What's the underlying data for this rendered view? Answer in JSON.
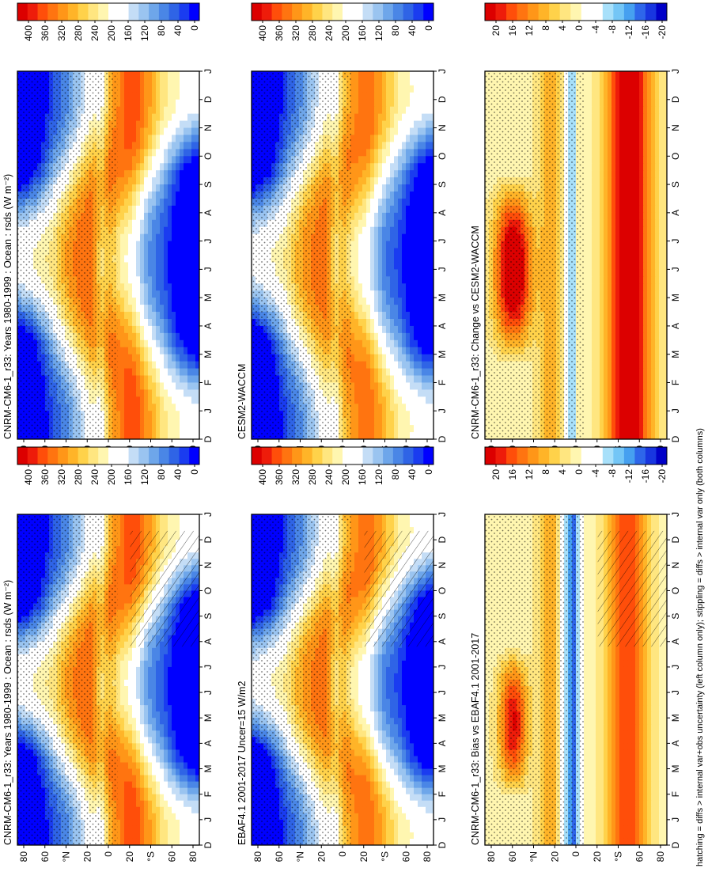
{
  "footnote": "hatching = diffs > internal var+obs uncertainty (left column only); stippling = diffs > internal var only (both columns)",
  "months": [
    "D",
    "J",
    "F",
    "M",
    "A",
    "M",
    "J",
    "J",
    "A",
    "S",
    "O",
    "N",
    "D",
    "J"
  ],
  "lat_ticks": [
    "80",
    "60",
    "°N",
    "20",
    "0",
    "20",
    "°S",
    "60",
    "80"
  ],
  "colors": {
    "abs": [
      "#0000ff",
      "#1a3cf0",
      "#2f64e6",
      "#4a86e6",
      "#6ea6ea",
      "#9ac4f0",
      "#c4ddf6",
      "#ffffff",
      "#ffffff",
      "#fff6b0",
      "#ffe680",
      "#ffd24a",
      "#ffb428",
      "#ff9618",
      "#ff7410",
      "#ff4e0a",
      "#ee1c0a",
      "#dc0000"
    ],
    "diff": [
      "#0000c8",
      "#1836e0",
      "#2e66ea",
      "#46a0f0",
      "#74c6f6",
      "#a8e0fa",
      "#ffffff",
      "#ffffff",
      "#fff6b0",
      "#ffe680",
      "#ffd24a",
      "#ffb428",
      "#ff9618",
      "#ff7410",
      "#ff4e0a",
      "#ee1c0a",
      "#dc0000"
    ]
  },
  "chart_data": [
    {
      "type": "heatmap",
      "title": "CNRM-CM6-1_r33: Years 1980-1999 : Ocean : rsds (W m⁻²)",
      "variable": "rsds",
      "units": "W m⁻²",
      "x_ticks": [
        "D",
        "J",
        "F",
        "M",
        "A",
        "M",
        "J",
        "J",
        "A",
        "S",
        "O",
        "N",
        "D",
        "J"
      ],
      "y_ticks": [
        "80",
        "60",
        "°N",
        "20",
        "0",
        "20",
        "°S",
        "60",
        "80"
      ],
      "colorbar_ticks": [
        "400",
        "360",
        "320",
        "280",
        "240",
        "200",
        "160",
        "120",
        "80",
        "40",
        "0"
      ],
      "range": [
        0,
        420
      ],
      "hatching": true,
      "stippling": true
    },
    {
      "type": "heatmap",
      "title": "EBAF4.1 2001-2017 Uncer=15 W/m2",
      "x_ticks": [
        "D",
        "J",
        "F",
        "M",
        "A",
        "M",
        "J",
        "J",
        "A",
        "S",
        "O",
        "N",
        "D",
        "J"
      ],
      "y_ticks": [
        "80",
        "60",
        "°N",
        "20",
        "0",
        "20",
        "°S",
        "60",
        "80"
      ],
      "colorbar_ticks": [
        "400",
        "360",
        "320",
        "280",
        "240",
        "200",
        "160",
        "120",
        "80",
        "40",
        "0"
      ],
      "range": [
        0,
        420
      ],
      "hatching": true,
      "stippling": true
    },
    {
      "type": "heatmap",
      "title": "CNRM-CM6-1_r33: Bias vs EBAF4.1 2001-2017",
      "x_ticks": [
        "D",
        "J",
        "F",
        "M",
        "A",
        "M",
        "J",
        "J",
        "A",
        "S",
        "O",
        "N",
        "D",
        "J"
      ],
      "y_ticks": [
        "80",
        "60",
        "°N",
        "20",
        "0",
        "20",
        "°S",
        "60",
        "80"
      ],
      "colorbar_ticks": [
        "20",
        "16",
        "12",
        "8",
        "4",
        "0",
        "-4",
        "-8",
        "-12",
        "-16",
        "-20"
      ],
      "range": [
        -22,
        22
      ],
      "hatching": true,
      "stippling": true
    },
    {
      "type": "heatmap",
      "title": "CNRM-CM6-1_r33: Years 1980-1999 : Ocean : rsds (W m⁻²)",
      "variable": "rsds",
      "units": "W m⁻²",
      "x_ticks": [
        "D",
        "J",
        "F",
        "M",
        "A",
        "M",
        "J",
        "J",
        "A",
        "S",
        "O",
        "N",
        "D",
        "J"
      ],
      "y_ticks": [
        "80",
        "60",
        "°N",
        "20",
        "0",
        "20",
        "°S",
        "60",
        "80"
      ],
      "colorbar_ticks": [
        "400",
        "360",
        "320",
        "280",
        "240",
        "200",
        "160",
        "120",
        "80",
        "40",
        "0"
      ],
      "range": [
        0,
        420
      ],
      "hatching": false,
      "stippling": true
    },
    {
      "type": "heatmap",
      "title": "CESM2-WACCM",
      "x_ticks": [
        "D",
        "J",
        "F",
        "M",
        "A",
        "M",
        "J",
        "J",
        "A",
        "S",
        "O",
        "N",
        "D",
        "J"
      ],
      "y_ticks": [
        "80",
        "60",
        "°N",
        "20",
        "0",
        "20",
        "°S",
        "60",
        "80"
      ],
      "colorbar_ticks": [
        "400",
        "360",
        "320",
        "280",
        "240",
        "200",
        "160",
        "120",
        "80",
        "40",
        "0"
      ],
      "range": [
        0,
        420
      ],
      "hatching": false,
      "stippling": true
    },
    {
      "type": "heatmap",
      "title": "CNRM-CM6-1_r33: Change vs CESM2-WACCM",
      "x_ticks": [
        "D",
        "J",
        "F",
        "M",
        "A",
        "M",
        "J",
        "J",
        "A",
        "S",
        "O",
        "N",
        "D",
        "J"
      ],
      "y_ticks": [
        "80",
        "60",
        "°N",
        "20",
        "0",
        "20",
        "°S",
        "60",
        "80"
      ],
      "colorbar_ticks": [
        "20",
        "16",
        "12",
        "8",
        "4",
        "0",
        "-4",
        "-8",
        "-12",
        "-16",
        "-20"
      ],
      "range": [
        -22,
        22
      ],
      "hatching": false,
      "stippling": true
    }
  ]
}
